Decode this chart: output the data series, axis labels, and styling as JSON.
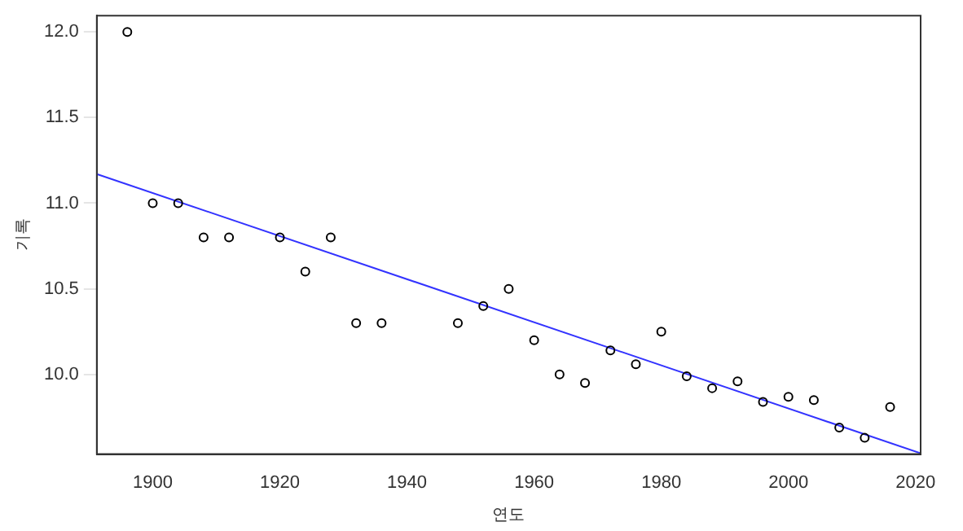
{
  "chart_data": {
    "type": "scatter",
    "xlabel": "연도",
    "ylabel": "기록",
    "xlim": [
      1891.2,
      2020.8
    ],
    "ylim": [
      9.535,
      12.095
    ],
    "xticks": [
      1900,
      1920,
      1940,
      1960,
      1980,
      2000,
      2020
    ],
    "yticks": [
      {
        "value": 10,
        "label": "10.0"
      },
      10.5,
      {
        "value": 11,
        "label": "11.0"
      },
      11.5,
      {
        "value": 12,
        "label": "12.0"
      }
    ],
    "grid": false,
    "legend": false,
    "series": [
      {
        "type": "scatter",
        "marker": "circle",
        "color": "#000000",
        "x": [
          1896,
          1900,
          1904,
          1908,
          1912,
          1920,
          1924,
          1928,
          1932,
          1936,
          1948,
          1952,
          1956,
          1960,
          1964,
          1968,
          1972,
          1976,
          1980,
          1984,
          1988,
          1992,
          1996,
          2000,
          2004,
          2008,
          2012,
          2016
        ],
        "values": [
          12.0,
          11.0,
          11.0,
          10.8,
          10.8,
          10.8,
          10.6,
          10.8,
          10.3,
          10.3,
          10.3,
          10.4,
          10.5,
          10.2,
          10.0,
          9.95,
          10.14,
          10.06,
          10.25,
          9.99,
          9.92,
          9.96,
          9.84,
          9.87,
          9.85,
          9.69,
          9.63,
          9.81
        ]
      },
      {
        "type": "line",
        "color": "#3333ff",
        "x": [
          1891.2,
          2020.8
        ],
        "values": [
          11.17,
          9.54
        ]
      }
    ]
  }
}
